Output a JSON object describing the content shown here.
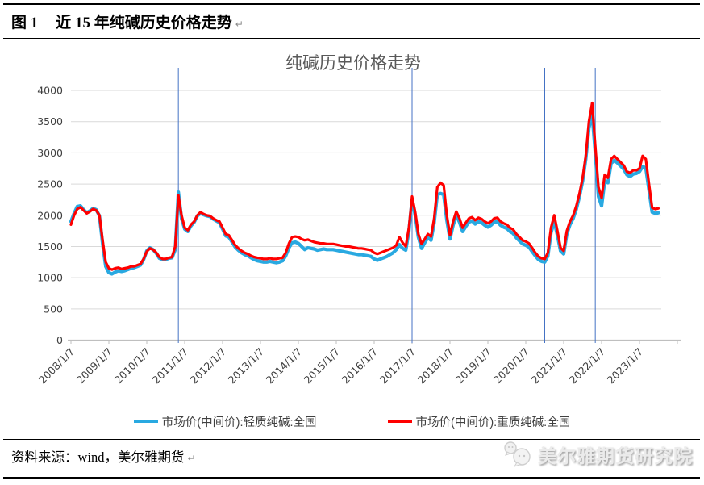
{
  "header": {
    "figure_label": "图 1",
    "title": "近 15 年纯碱历史价格走势",
    "paragraph_mark": "↵"
  },
  "chart_data": {
    "type": "line",
    "title": "纯碱历史价格走势",
    "x_start": "2008-01",
    "x_frequency": "monthly",
    "x_tick_labels": [
      "2008/1/7",
      "2009/1/7",
      "2010/1/7",
      "2011/1/7",
      "2012/1/7",
      "2013/1/7",
      "2014/1/7",
      "2015/1/7",
      "2016/1/7",
      "2017/1/7",
      "2018/1/7",
      "2019/1/7",
      "2020/1/7",
      "2021/1/7",
      "2022/1/7",
      "2023/1/7"
    ],
    "ylim": [
      0,
      4000
    ],
    "ytick_step": 500,
    "grid": true,
    "legend_position": "bottom",
    "grid_color": "#d9d9d9",
    "axis_color": "#bfbfbf",
    "series": [
      {
        "name": "市场价(中间价):轻质纯碱:全国",
        "color": "#29A9E1",
        "values": [
          1900,
          2030,
          2140,
          2150,
          2090,
          2040,
          2070,
          2110,
          2090,
          1990,
          1550,
          1180,
          1080,
          1060,
          1090,
          1110,
          1100,
          1110,
          1130,
          1150,
          1160,
          1180,
          1200,
          1290,
          1430,
          1480,
          1450,
          1390,
          1310,
          1290,
          1290,
          1310,
          1320,
          1450,
          2370,
          1950,
          1780,
          1740,
          1830,
          1890,
          1990,
          2030,
          2010,
          1990,
          1980,
          1940,
          1910,
          1880,
          1780,
          1670,
          1650,
          1570,
          1490,
          1440,
          1400,
          1370,
          1350,
          1320,
          1290,
          1270,
          1260,
          1250,
          1250,
          1260,
          1250,
          1240,
          1250,
          1270,
          1350,
          1480,
          1560,
          1570,
          1550,
          1500,
          1450,
          1480,
          1470,
          1460,
          1440,
          1450,
          1460,
          1450,
          1450,
          1450,
          1440,
          1430,
          1420,
          1410,
          1400,
          1390,
          1380,
          1370,
          1370,
          1360,
          1350,
          1340,
          1300,
          1280,
          1300,
          1320,
          1340,
          1370,
          1400,
          1450,
          1530,
          1470,
          1440,
          1750,
          2250,
          2000,
          1650,
          1470,
          1560,
          1640,
          1600,
          1880,
          2330,
          2350,
          2330,
          1920,
          1620,
          1840,
          2000,
          1890,
          1740,
          1820,
          1890,
          1910,
          1860,
          1900,
          1880,
          1840,
          1810,
          1840,
          1890,
          1900,
          1840,
          1810,
          1790,
          1740,
          1710,
          1640,
          1590,
          1540,
          1520,
          1490,
          1420,
          1350,
          1290,
          1260,
          1250,
          1350,
          1720,
          1900,
          1680,
          1430,
          1380,
          1700,
          1850,
          1950,
          2100,
          2300,
          2550,
          2900,
          3400,
          3620,
          3000,
          2300,
          2150,
          2550,
          2520,
          2830,
          2880,
          2840,
          2790,
          2740,
          2650,
          2620,
          2660,
          2670,
          2700,
          2780,
          2760,
          2400,
          2050,
          2030,
          2040
        ]
      },
      {
        "name": "市场价(中间价):重质纯碱:全国",
        "color": "#FF0000",
        "values": [
          1850,
          2000,
          2100,
          2130,
          2080,
          2030,
          2060,
          2100,
          2080,
          2000,
          1600,
          1250,
          1150,
          1130,
          1150,
          1160,
          1140,
          1150,
          1160,
          1180,
          1180,
          1200,
          1220,
          1300,
          1420,
          1470,
          1450,
          1400,
          1330,
          1300,
          1300,
          1320,
          1330,
          1500,
          2320,
          2000,
          1800,
          1760,
          1850,
          1900,
          2000,
          2050,
          2020,
          2000,
          1990,
          1950,
          1920,
          1900,
          1800,
          1700,
          1680,
          1600,
          1520,
          1470,
          1430,
          1400,
          1380,
          1350,
          1330,
          1320,
          1310,
          1300,
          1300,
          1310,
          1300,
          1300,
          1310,
          1320,
          1400,
          1550,
          1650,
          1660,
          1650,
          1620,
          1600,
          1610,
          1590,
          1570,
          1560,
          1550,
          1550,
          1540,
          1540,
          1540,
          1530,
          1520,
          1510,
          1500,
          1500,
          1490,
          1480,
          1470,
          1470,
          1460,
          1450,
          1440,
          1400,
          1380,
          1400,
          1420,
          1440,
          1460,
          1480,
          1520,
          1650,
          1560,
          1500,
          1800,
          2300,
          2050,
          1700,
          1540,
          1620,
          1700,
          1660,
          1950,
          2450,
          2520,
          2480,
          2000,
          1680,
          1900,
          2060,
          1950,
          1800,
          1880,
          1950,
          1970,
          1920,
          1960,
          1940,
          1900,
          1870,
          1900,
          1950,
          1960,
          1900,
          1870,
          1850,
          1800,
          1770,
          1700,
          1650,
          1600,
          1580,
          1550,
          1480,
          1400,
          1340,
          1310,
          1300,
          1400,
          1800,
          2000,
          1750,
          1480,
          1430,
          1750,
          1900,
          2000,
          2150,
          2350,
          2600,
          2950,
          3500,
          3800,
          3100,
          2450,
          2280,
          2650,
          2600,
          2900,
          2950,
          2900,
          2850,
          2800,
          2700,
          2680,
          2720,
          2720,
          2750,
          2950,
          2900,
          2500,
          2120,
          2100,
          2110
        ]
      }
    ],
    "event_lines": {
      "color": "#4472C4",
      "dates": [
        "2010-11",
        "2017-01",
        "2020-07",
        "2021-11"
      ]
    }
  },
  "footer": {
    "source": "资料来源：wind，美尔雅期货",
    "paragraph_mark": "↵",
    "watermark": "美尔雅期货研究院"
  }
}
